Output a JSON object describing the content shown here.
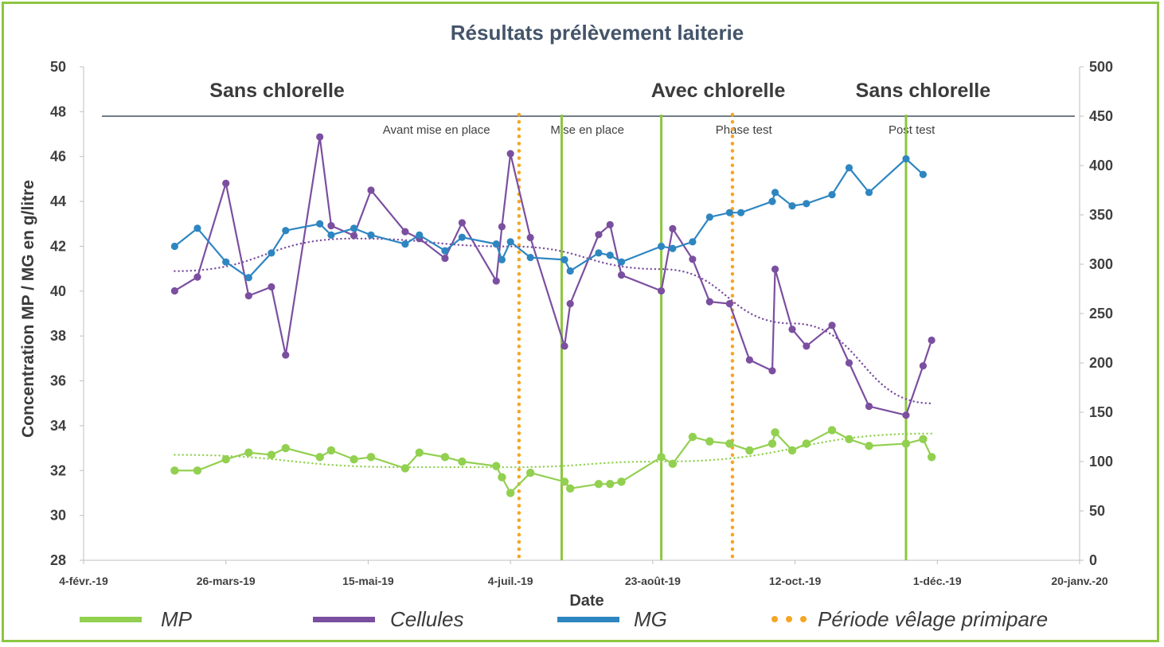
{
  "chart_data": {
    "type": "line",
    "title": "Résultats prélèvement laiterie",
    "xlabel": "Date",
    "ylabel": "Concentration MP / MG en g/litre",
    "ylim": [
      28,
      50
    ],
    "y2lim": [
      0,
      500
    ],
    "xlim": [
      "2019-02-04",
      "2020-01-20"
    ],
    "x_ticks": [
      "4-févr.-19",
      "26-mars-19",
      "15-mai-19",
      "4-juil.-19",
      "23-août-19",
      "12-oct.-19",
      "1-déc.-19",
      "20-janv.-20"
    ],
    "y_ticks": [
      "28",
      "30",
      "32",
      "34",
      "36",
      "38",
      "40",
      "42",
      "44",
      "46",
      "48",
      "50"
    ],
    "y2_ticks": [
      "0",
      "50",
      "100",
      "150",
      "200",
      "250",
      "300",
      "350",
      "400",
      "450",
      "500"
    ],
    "periods": [
      {
        "label": "Sans chlorelle",
        "x": "2019-04-13"
      },
      {
        "label": "Avec chlorelle",
        "x": "2019-09-15"
      },
      {
        "label": "Sans chlorelle",
        "x": "2019-11-26"
      }
    ],
    "phases": [
      {
        "label": "Avant mise en place",
        "x": "2019-06-08"
      },
      {
        "label": "Mise en place",
        "x": "2019-07-31"
      },
      {
        "label": "Phase test",
        "x": "2019-09-24"
      },
      {
        "label": "Post test",
        "x": "2019-11-22"
      }
    ],
    "horizontal_line_y": 47.8,
    "phase_lines": [
      {
        "kind": "Période vêlage primipare",
        "x": "2019-07-07"
      },
      {
        "kind": "phase-boundary",
        "x": "2019-07-22"
      },
      {
        "kind": "phase-boundary",
        "x": "2019-08-26"
      },
      {
        "kind": "Période vêlage primipare",
        "x": "2019-09-20"
      },
      {
        "kind": "phase-boundary",
        "x": "2019-11-20"
      }
    ],
    "series": [
      {
        "name": "MP",
        "color": "#92d050",
        "axis": "left",
        "points": [
          [
            "2019-03-08",
            32.0
          ],
          [
            "2019-03-16",
            32.0
          ],
          [
            "2019-03-26",
            32.5
          ],
          [
            "2019-04-03",
            32.8
          ],
          [
            "2019-04-11",
            32.7
          ],
          [
            "2019-04-16",
            33.0
          ],
          [
            "2019-04-28",
            32.6
          ],
          [
            "2019-05-02",
            32.9
          ],
          [
            "2019-05-10",
            32.5
          ],
          [
            "2019-05-16",
            32.6
          ],
          [
            "2019-05-28",
            32.1
          ],
          [
            "2019-06-02",
            32.8
          ],
          [
            "2019-06-11",
            32.6
          ],
          [
            "2019-06-17",
            32.4
          ],
          [
            "2019-06-29",
            32.2
          ],
          [
            "2019-07-01",
            31.7
          ],
          [
            "2019-07-04",
            31.0
          ],
          [
            "2019-07-11",
            31.9
          ],
          [
            "2019-07-23",
            31.5
          ],
          [
            "2019-07-25",
            31.2
          ],
          [
            "2019-08-04",
            31.4
          ],
          [
            "2019-08-08",
            31.4
          ],
          [
            "2019-08-12",
            31.5
          ],
          [
            "2019-08-26",
            32.6
          ],
          [
            "2019-08-30",
            32.3
          ],
          [
            "2019-09-06",
            33.5
          ],
          [
            "2019-09-12",
            33.3
          ],
          [
            "2019-09-19",
            33.2
          ],
          [
            "2019-09-26",
            32.9
          ],
          [
            "2019-10-04",
            33.2
          ],
          [
            "2019-10-05",
            33.7
          ],
          [
            "2019-10-11",
            32.9
          ],
          [
            "2019-10-16",
            33.2
          ],
          [
            "2019-10-25",
            33.8
          ],
          [
            "2019-10-31",
            33.4
          ],
          [
            "2019-11-07",
            33.1
          ],
          [
            "2019-11-20",
            33.2
          ],
          [
            "2019-11-26",
            33.4
          ],
          [
            "2019-11-29",
            32.6
          ]
        ]
      },
      {
        "name": "Cellules",
        "color": "#7b4fa0",
        "axis": "right",
        "points": [
          [
            "2019-03-08",
            273
          ],
          [
            "2019-03-16",
            287
          ],
          [
            "2019-03-26",
            382
          ],
          [
            "2019-04-03",
            268
          ],
          [
            "2019-04-11",
            277
          ],
          [
            "2019-04-16",
            208
          ],
          [
            "2019-04-28",
            429
          ],
          [
            "2019-05-02",
            339
          ],
          [
            "2019-05-10",
            329
          ],
          [
            "2019-05-16",
            375
          ],
          [
            "2019-05-28",
            333
          ],
          [
            "2019-06-02",
            326
          ],
          [
            "2019-06-11",
            306
          ],
          [
            "2019-06-17",
            342
          ],
          [
            "2019-06-29",
            283
          ],
          [
            "2019-07-01",
            338
          ],
          [
            "2019-07-04",
            412
          ],
          [
            "2019-07-11",
            327
          ],
          [
            "2019-07-23",
            217
          ],
          [
            "2019-07-25",
            260
          ],
          [
            "2019-08-04",
            330
          ],
          [
            "2019-08-08",
            340
          ],
          [
            "2019-08-12",
            289
          ],
          [
            "2019-08-26",
            273
          ],
          [
            "2019-08-30",
            336
          ],
          [
            "2019-09-06",
            305
          ],
          [
            "2019-09-12",
            262
          ],
          [
            "2019-09-19",
            260
          ],
          [
            "2019-09-26",
            203
          ],
          [
            "2019-10-04",
            192
          ],
          [
            "2019-10-05",
            295
          ],
          [
            "2019-10-11",
            234
          ],
          [
            "2019-10-16",
            217
          ],
          [
            "2019-10-25",
            238
          ],
          [
            "2019-10-31",
            200
          ],
          [
            "2019-11-07",
            156
          ],
          [
            "2019-11-20",
            147
          ],
          [
            "2019-11-26",
            197
          ],
          [
            "2019-11-29",
            223
          ]
        ]
      },
      {
        "name": "MG",
        "color": "#2e86c1",
        "axis": "left",
        "points": [
          [
            "2019-03-08",
            42.0
          ],
          [
            "2019-03-16",
            42.8
          ],
          [
            "2019-03-26",
            41.3
          ],
          [
            "2019-04-03",
            40.6
          ],
          [
            "2019-04-11",
            41.7
          ],
          [
            "2019-04-16",
            42.7
          ],
          [
            "2019-04-28",
            43.0
          ],
          [
            "2019-05-02",
            42.5
          ],
          [
            "2019-05-10",
            42.8
          ],
          [
            "2019-05-16",
            42.5
          ],
          [
            "2019-05-28",
            42.1
          ],
          [
            "2019-06-02",
            42.5
          ],
          [
            "2019-06-11",
            41.8
          ],
          [
            "2019-06-17",
            42.4
          ],
          [
            "2019-06-29",
            42.1
          ],
          [
            "2019-07-01",
            41.4
          ],
          [
            "2019-07-04",
            42.2
          ],
          [
            "2019-07-11",
            41.5
          ],
          [
            "2019-07-23",
            41.4
          ],
          [
            "2019-07-25",
            40.9
          ],
          [
            "2019-08-04",
            41.7
          ],
          [
            "2019-08-08",
            41.6
          ],
          [
            "2019-08-12",
            41.3
          ],
          [
            "2019-08-26",
            42.0
          ],
          [
            "2019-08-30",
            41.9
          ],
          [
            "2019-09-06",
            42.2
          ],
          [
            "2019-09-12",
            43.3
          ],
          [
            "2019-09-19",
            43.5
          ],
          [
            "2019-09-23",
            43.5
          ],
          [
            "2019-10-04",
            44.0
          ],
          [
            "2019-10-05",
            44.4
          ],
          [
            "2019-10-11",
            43.8
          ],
          [
            "2019-10-16",
            43.9
          ],
          [
            "2019-10-25",
            44.3
          ],
          [
            "2019-10-31",
            45.5
          ],
          [
            "2019-11-07",
            44.4
          ],
          [
            "2019-11-20",
            45.9
          ],
          [
            "2019-11-26",
            45.2
          ]
        ]
      }
    ],
    "trendlines": [
      {
        "series": "MP",
        "color": "#92d050",
        "points": [
          [
            "2019-03-08",
            32.7
          ],
          [
            "2019-05-28",
            32.15
          ],
          [
            "2019-07-04",
            32.15
          ],
          [
            "2019-08-26",
            32.4
          ],
          [
            "2019-11-29",
            33.65
          ]
        ]
      },
      {
        "series": "Cellules",
        "color": "#7b4fa0",
        "axis": "right",
        "points": [
          [
            "2019-03-08",
            293
          ],
          [
            "2019-05-10",
            326
          ],
          [
            "2019-07-04",
            318
          ],
          [
            "2019-08-26",
            295
          ],
          [
            "2019-10-11",
            240
          ],
          [
            "2019-11-29",
            159
          ]
        ]
      }
    ],
    "legend": [
      {
        "label": "MP",
        "color": "#92d050",
        "style": "solid"
      },
      {
        "label": "Cellules",
        "color": "#7b4fa0",
        "style": "solid"
      },
      {
        "label": "MG",
        "color": "#2e86c1",
        "style": "solid"
      },
      {
        "label": "Période vêlage primipare",
        "color": "#f5a623",
        "style": "dotted"
      }
    ],
    "legend_position": "bottom",
    "grid": false
  }
}
